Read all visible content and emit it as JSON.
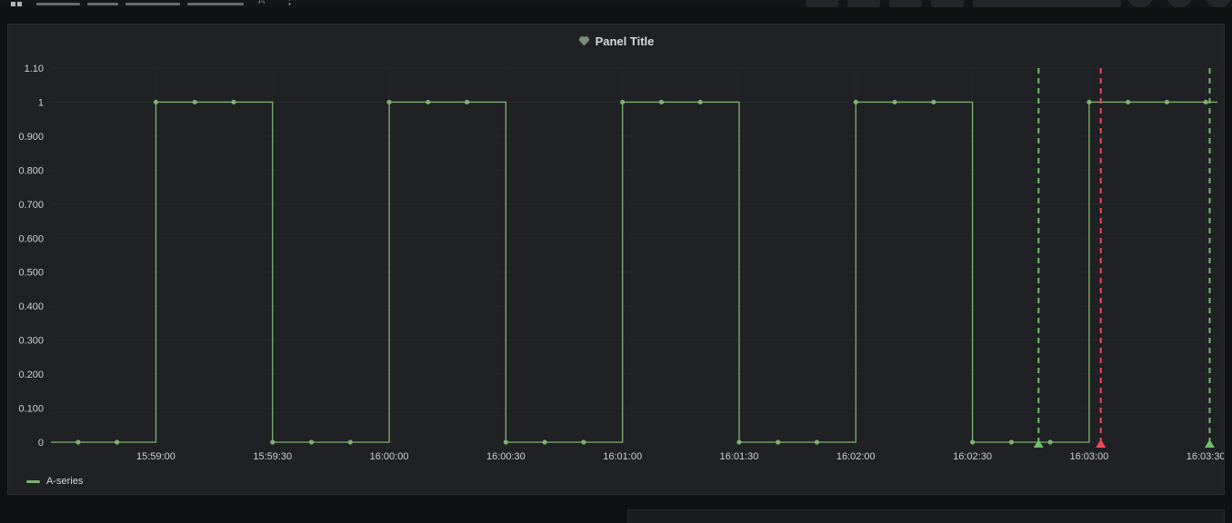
{
  "navbar": {
    "left_icons": [
      "apps-icon",
      "star-icon"
    ],
    "right_controls": [
      "toolbar-button-1",
      "toolbar-button-2",
      "toolbar-button-3",
      "toolbar-button-4",
      "time-range-picker",
      "toolbar-circle-button-1",
      "toolbar-circle-button-2",
      "toolbar-circle-button-3"
    ]
  },
  "panel": {
    "title": "Panel Title",
    "alert_state_icon": "heart-icon"
  },
  "colors": {
    "series_green": "#7EB26D",
    "annotation_green": "#73BF69",
    "annotation_red": "#F2495C",
    "heart_icon": "#7a8b7a",
    "panel_background": "#1f2124",
    "page_background": "#101113"
  },
  "chart_data": {
    "type": "line",
    "line_mode": "step-after",
    "title": "Panel Title",
    "grid": true,
    "legend_position": "bottom-left",
    "ylim": [
      0,
      1.1
    ],
    "x_start": "15:58:33",
    "x_end": "16:03:33",
    "x_ticks": [
      "15:59:00",
      "15:59:30",
      "16:00:00",
      "16:00:30",
      "16:01:00",
      "16:01:30",
      "16:02:00",
      "16:02:30",
      "16:03:00",
      "16:03:30"
    ],
    "y_ticks": [
      {
        "label": "0",
        "value": 0
      },
      {
        "label": "0.100",
        "value": 0.1
      },
      {
        "label": "0.200",
        "value": 0.2
      },
      {
        "label": "0.300",
        "value": 0.3
      },
      {
        "label": "0.400",
        "value": 0.4
      },
      {
        "label": "0.500",
        "value": 0.5
      },
      {
        "label": "0.600",
        "value": 0.6
      },
      {
        "label": "0.700",
        "value": 0.7
      },
      {
        "label": "0.800",
        "value": 0.8
      },
      {
        "label": "0.900",
        "value": 0.9
      },
      {
        "label": "1",
        "value": 1
      },
      {
        "label": "1.10",
        "value": 1.1
      }
    ],
    "series": [
      {
        "name": "A-series",
        "color": "#7EB26D",
        "points": [
          [
            "15:58:40",
            0
          ],
          [
            "15:58:50",
            0
          ],
          [
            "15:59:00",
            1
          ],
          [
            "15:59:10",
            1
          ],
          [
            "15:59:20",
            1
          ],
          [
            "15:59:30",
            0
          ],
          [
            "15:59:40",
            0
          ],
          [
            "15:59:50",
            0
          ],
          [
            "16:00:00",
            1
          ],
          [
            "16:00:10",
            1
          ],
          [
            "16:00:20",
            1
          ],
          [
            "16:00:30",
            0
          ],
          [
            "16:00:40",
            0
          ],
          [
            "16:00:50",
            0
          ],
          [
            "16:01:00",
            1
          ],
          [
            "16:01:10",
            1
          ],
          [
            "16:01:20",
            1
          ],
          [
            "16:01:30",
            0
          ],
          [
            "16:01:40",
            0
          ],
          [
            "16:01:50",
            0
          ],
          [
            "16:02:00",
            1
          ],
          [
            "16:02:10",
            1
          ],
          [
            "16:02:20",
            1
          ],
          [
            "16:02:30",
            0
          ],
          [
            "16:02:40",
            0
          ],
          [
            "16:02:50",
            0
          ],
          [
            "16:03:00",
            1
          ],
          [
            "16:03:10",
            1
          ],
          [
            "16:03:20",
            1
          ],
          [
            "16:03:30",
            1
          ]
        ]
      }
    ],
    "annotations": [
      {
        "time": "16:02:47",
        "color": "#73BF69",
        "style": "dashed"
      },
      {
        "time": "16:03:03",
        "color": "#F2495C",
        "style": "dashed"
      },
      {
        "time": "16:03:31",
        "color": "#73BF69",
        "style": "dashed"
      }
    ]
  }
}
